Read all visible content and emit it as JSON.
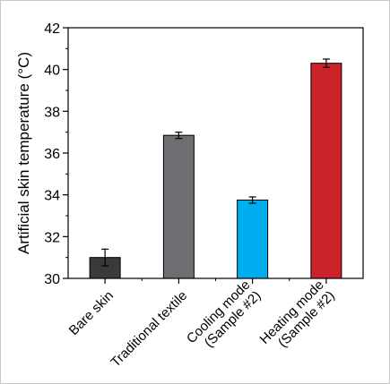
{
  "chart_data": {
    "type": "bar",
    "title": "",
    "xlabel": "",
    "ylabel": "Artificial skin temperature (°C)",
    "ylim": [
      30,
      42
    ],
    "yticks": [
      30,
      32,
      34,
      36,
      38,
      40,
      42
    ],
    "grid": false,
    "legend": "none",
    "categories": [
      [
        "Bare skin"
      ],
      [
        "Traditional textile"
      ],
      [
        "Cooling mode",
        "(Sample #2)"
      ],
      [
        "Heating mode",
        "(Sample #2)"
      ]
    ],
    "values": [
      31.0,
      36.85,
      33.75,
      40.3
    ],
    "errors": [
      0.4,
      0.15,
      0.15,
      0.2
    ],
    "colors": [
      "#3a3a3a",
      "#6d6e71",
      "#00aeef",
      "#cc2229"
    ]
  }
}
